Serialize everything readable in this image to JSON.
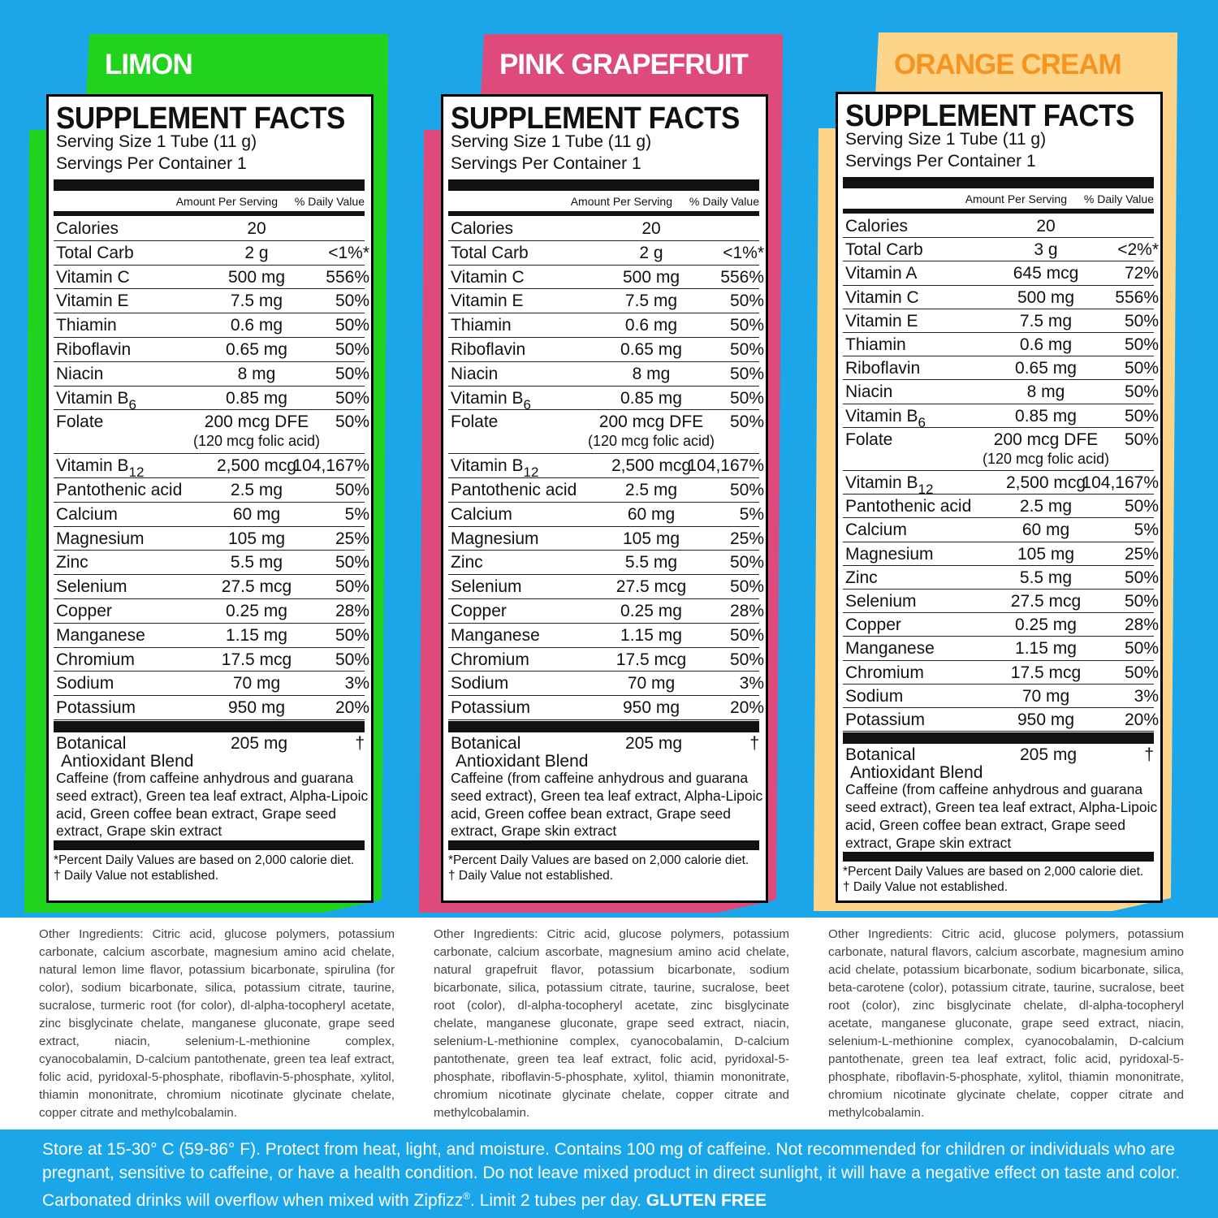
{
  "panels": [
    {
      "flavor": "LIMON",
      "heading": "SUPPLEMENT FACTS",
      "serving_size": "Serving Size 1 Tube  (11 g)",
      "servings_per_container": "Servings Per Container  1",
      "amount_header": "Amount Per Serving",
      "dv_header": "% Daily Value",
      "rows": [
        {
          "name": "Calories",
          "amount": "20"
        },
        {
          "name": "Total Carb",
          "amount": "2 g",
          "dv": "<1%*"
        },
        {
          "name": "Vitamin C",
          "amount": "500 mg",
          "dv": "556%"
        },
        {
          "name": "Vitamin E",
          "amount": "7.5 mg",
          "dv": "50%"
        },
        {
          "name": "Thiamin",
          "amount": "0.6 mg",
          "dv": "50%"
        },
        {
          "name": "Riboflavin",
          "amount": "0.65 mg",
          "dv": "50%"
        },
        {
          "name": "Niacin",
          "amount": "8 mg",
          "dv": "50%"
        },
        {
          "name": "Vitamin  B",
          "sub": "6",
          "amount": "0.85 mg",
          "dv": "50%"
        },
        {
          "name": "Folate",
          "amount": "200 mcg DFE",
          "dv": "50%",
          "note": "(120 mcg folic acid)"
        },
        {
          "name": "Vitamin B",
          "sub": "12",
          "amount": "2,500 mcg",
          "dv": "104,167%"
        },
        {
          "name": "Pantothenic acid",
          "amount": "2.5 mg",
          "dv": "50%"
        },
        {
          "name": "Calcium",
          "amount": "60 mg",
          "dv": "5%"
        },
        {
          "name": "Magnesium",
          "amount": "105 mg",
          "dv": "25%"
        },
        {
          "name": "Zinc",
          "amount": "5.5 mg",
          "dv": "50%"
        },
        {
          "name": "Selenium",
          "amount": "27.5 mcg",
          "dv": "50%"
        },
        {
          "name": "Copper",
          "amount": "0.25 mg",
          "dv": "28%"
        },
        {
          "name": "Manganese",
          "amount": "1.15 mg",
          "dv": "50%"
        },
        {
          "name": "Chromium",
          "amount": "17.5 mcg",
          "dv": "50%"
        },
        {
          "name": "Sodium",
          "amount": "70 mg",
          "dv": "3%"
        },
        {
          "name": "Potassium",
          "amount": "950 mg",
          "dv": "20%"
        }
      ],
      "blend": {
        "name_line1": "Botanical",
        "name_line2": "Antioxidant Blend",
        "amount": "205 mg",
        "dv": "†",
        "description": "Caffeine (from caffeine anhydrous and guarana seed extract), Green tea leaf extract, Alpha-Lipoic acid, Green coffee bean extract, Grape seed extract, Grape skin extract"
      },
      "footnotes": [
        "*Percent Daily Values are based on 2,000 calorie diet.",
        "† Daily Value not established."
      ],
      "other_ingredients": "Other Ingredients: Citric acid, glucose polymers, potassium carbonate, calcium ascorbate, magnesium amino acid chelate, natural lemon lime flavor, potassium bicarbonate, spirulina (for color), sodium bicarbonate, silica, potassium citrate, taurine, sucralose, turmeric root (for color), dl-alpha-tocopheryl acetate, zinc bisglycinate chelate, manganese gluconate, grape seed extract, niacin, selenium-L-methionine complex, cyanocobalamin, D-calcium pantothenate, green tea leaf extract, folic acid, pyridoxal-5-phosphate, riboflavin-5-phosphate, xylitol, thiamin mononitrate, chromium nicotinate glycinate chelate, copper citrate and methylcobalamin."
    },
    {
      "flavor": "PINK GRAPEFRUIT",
      "heading": "SUPPLEMENT FACTS",
      "serving_size": "Serving Size 1 Tube  (11 g)",
      "servings_per_container": "Servings Per Container  1",
      "amount_header": "Amount Per Serving",
      "dv_header": "% Daily Value",
      "rows": [
        {
          "name": "Calories",
          "amount": "20"
        },
        {
          "name": "Total Carb",
          "amount": "2 g",
          "dv": "<1%*"
        },
        {
          "name": "Vitamin C",
          "amount": "500 mg",
          "dv": "556%"
        },
        {
          "name": "Vitamin E",
          "amount": "7.5 mg",
          "dv": "50%"
        },
        {
          "name": "Thiamin",
          "amount": "0.6 mg",
          "dv": "50%"
        },
        {
          "name": "Riboflavin",
          "amount": "0.65 mg",
          "dv": "50%"
        },
        {
          "name": "Niacin",
          "amount": "8 mg",
          "dv": "50%"
        },
        {
          "name": "Vitamin  B",
          "sub": "6",
          "amount": "0.85 mg",
          "dv": "50%"
        },
        {
          "name": "Folate",
          "amount": "200 mcg DFE",
          "dv": "50%",
          "note": "(120 mcg folic acid)"
        },
        {
          "name": "Vitamin B",
          "sub": "12",
          "amount": "2,500 mcg",
          "dv": "104,167%"
        },
        {
          "name": "Pantothenic acid",
          "amount": "2.5 mg",
          "dv": "50%"
        },
        {
          "name": "Calcium",
          "amount": "60 mg",
          "dv": "5%"
        },
        {
          "name": "Magnesium",
          "amount": "105 mg",
          "dv": "25%"
        },
        {
          "name": "Zinc",
          "amount": "5.5 mg",
          "dv": "50%"
        },
        {
          "name": "Selenium",
          "amount": "27.5 mcg",
          "dv": "50%"
        },
        {
          "name": "Copper",
          "amount": "0.25 mg",
          "dv": "28%"
        },
        {
          "name": "Manganese",
          "amount": "1.15 mg",
          "dv": "50%"
        },
        {
          "name": "Chromium",
          "amount": "17.5 mcg",
          "dv": "50%"
        },
        {
          "name": "Sodium",
          "amount": "70 mg",
          "dv": "3%"
        },
        {
          "name": "Potassium",
          "amount": "950 mg",
          "dv": "20%"
        }
      ],
      "blend": {
        "name_line1": "Botanical",
        "name_line2": "Antioxidant Blend",
        "amount": "205 mg",
        "dv": "†",
        "description": "Caffeine (from caffeine anhydrous and guarana seed extract), Green tea leaf extract, Alpha-Lipoic acid, Green coffee bean extract, Grape seed extract, Grape skin extract"
      },
      "footnotes": [
        "*Percent Daily Values are based on 2,000 calorie diet.",
        "† Daily Value not established."
      ],
      "other_ingredients": "Other Ingredients: Citric acid, glucose polymers, potassium carbonate, calcium ascorbate, magnesium amino acid chelate, natural grapefruit flavor, potassium bicarbonate, sodium bicarbonate, silica, potassium citrate, taurine, sucralose, beet root (color), dl-alpha-tocopheryl acetate, zinc bisglycinate chelate, manganese gluconate, grape seed extract, niacin, selenium-L-methionine complex, cyanocobalamin, D-calcium pantothenate, green tea leaf extract, folic acid, pyridoxal-5-phosphate, riboflavin-5-phosphate, xylitol, thiamin mononitrate, chromium nicotinate glycinate chelate, copper citrate and methylcobalamin."
    },
    {
      "flavor": "ORANGE CREAM",
      "heading": "SUPPLEMENT FACTS",
      "serving_size": "Serving Size 1 Tube  (11 g)",
      "servings_per_container": "Servings Per Container  1",
      "amount_header": "Amount Per Serving",
      "dv_header": "% Daily Value",
      "rows": [
        {
          "name": "Calories",
          "amount": "20"
        },
        {
          "name": "Total Carb",
          "amount": "3 g",
          "dv": "<2%*"
        },
        {
          "name": "Vitamin A",
          "amount": "645 mcg",
          "dv": "72%"
        },
        {
          "name": "Vitamin C",
          "amount": "500 mg",
          "dv": "556%"
        },
        {
          "name": "Vitamin E",
          "amount": "7.5 mg",
          "dv": "50%"
        },
        {
          "name": "Thiamin",
          "amount": "0.6 mg",
          "dv": "50%"
        },
        {
          "name": "Riboflavin",
          "amount": "0.65 mg",
          "dv": "50%"
        },
        {
          "name": "Niacin",
          "amount": "8 mg",
          "dv": "50%"
        },
        {
          "name": "Vitamin  B",
          "sub": "6",
          "amount": "0.85 mg",
          "dv": "50%"
        },
        {
          "name": "Folate",
          "amount": "200 mcg DFE",
          "dv": "50%",
          "note": "(120 mcg folic acid)"
        },
        {
          "name": "Vitamin B",
          "sub": "12",
          "amount": "2,500 mcg",
          "dv": "104,167%"
        },
        {
          "name": "Pantothenic acid",
          "amount": "2.5 mg",
          "dv": "50%"
        },
        {
          "name": "Calcium",
          "amount": "60 mg",
          "dv": "5%"
        },
        {
          "name": "Magnesium",
          "amount": "105 mg",
          "dv": "25%"
        },
        {
          "name": "Zinc",
          "amount": "5.5 mg",
          "dv": "50%"
        },
        {
          "name": "Selenium",
          "amount": "27.5 mcg",
          "dv": "50%"
        },
        {
          "name": "Copper",
          "amount": "0.25 mg",
          "dv": "28%"
        },
        {
          "name": "Manganese",
          "amount": "1.15 mg",
          "dv": "50%"
        },
        {
          "name": "Chromium",
          "amount": "17.5 mcg",
          "dv": "50%"
        },
        {
          "name": "Sodium",
          "amount": "70 mg",
          "dv": "3%"
        },
        {
          "name": "Potassium",
          "amount": "950 mg",
          "dv": "20%"
        }
      ],
      "blend": {
        "name_line1": "Botanical",
        "name_line2": "Antioxidant Blend",
        "amount": "205 mg",
        "dv": "†",
        "description": "Caffeine (from caffeine anhydrous and guarana seed extract), Green tea leaf extract, Alpha-Lipoic acid, Green coffee bean extract, Grape seed extract, Grape skin extract"
      },
      "footnotes": [
        "*Percent Daily Values are based on 2,000 calorie diet.",
        "† Daily Value not established."
      ],
      "other_ingredients": "Other Ingredients: Citric acid, glucose polymers, potassium carbonate, natural flavors, calcium ascorbate, magnesium amino acid chelate, potassium bicarbonate, sodium bicarbonate, silica, beta-carotene (color), potassium citrate, taurine, sucralose, beet root (color), zinc bisglycinate chelate, dl-alpha-tocopheryl acetate, manganese gluconate, grape seed extract, niacin, selenium-L-methionine complex, cyanocobalamin, D-calcium pantothenate, green tea leaf extract, folic acid, pyridoxal-5-phosphate, riboflavin-5-phosphate, xylitol, thiamin mononitrate, chromium nicotinate glycinate chelate, copper citrate and methylcobalamin."
    }
  ],
  "storage": {
    "text": "Store at 15-30° C (59-86° F). Protect from heat, light, and moisture. Contains 100 mg of caffeine. Not recommended for children or individuals who are pregnant, sensitive to caffeine, or have a health condition. Do not leave mixed product in direct sunlight, it will have a negative effect on taste and color. Carbonated drinks will overflow when mixed with Zipfizz",
    "trademark": "®",
    "limit": ". Limit 2 tubes per day.",
    "gluten_free": "GLUTEN FREE"
  }
}
